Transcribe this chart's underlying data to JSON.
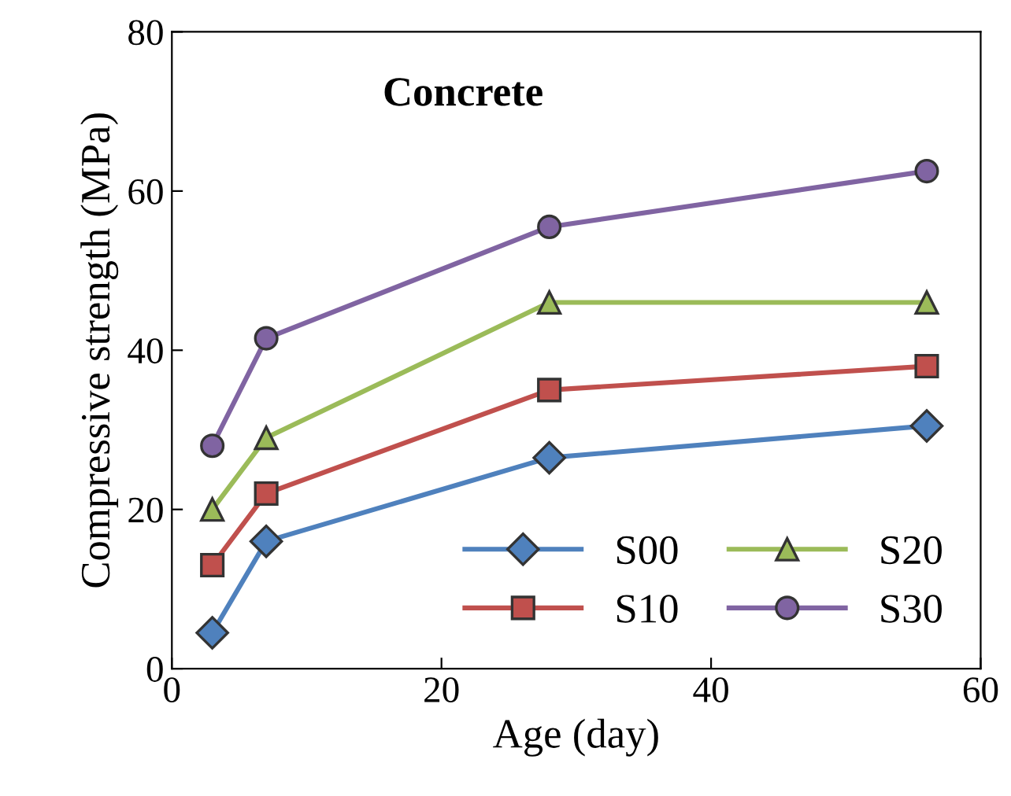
{
  "chart_data": {
    "type": "line",
    "xlabel": "Age (day)",
    "ylabel": "Compressive strength (MPa)",
    "annotations": [
      "Concrete"
    ],
    "x": [
      3,
      7,
      28,
      56
    ],
    "xlim": [
      0,
      60
    ],
    "xticks": [
      0,
      20,
      40,
      60
    ],
    "ylim": [
      0,
      80
    ],
    "yticks": [
      0,
      20,
      40,
      60,
      80
    ],
    "legend": "bottom right",
    "line_style": "solid",
    "series": [
      {
        "name": "S00",
        "color": "#4f81bd",
        "marker": "diamond",
        "values": [
          4.5,
          16,
          26.5,
          30.5
        ]
      },
      {
        "name": "S10",
        "color": "#c0504d",
        "marker": "square",
        "values": [
          13,
          22,
          35,
          38
        ]
      },
      {
        "name": "S20",
        "color": "#9bbb59",
        "marker": "triangle",
        "values": [
          20,
          29,
          46,
          46
        ]
      },
      {
        "name": "S30",
        "color": "#8064a2",
        "marker": "circle",
        "values": [
          28,
          41.5,
          55.5,
          62.5
        ]
      }
    ]
  }
}
